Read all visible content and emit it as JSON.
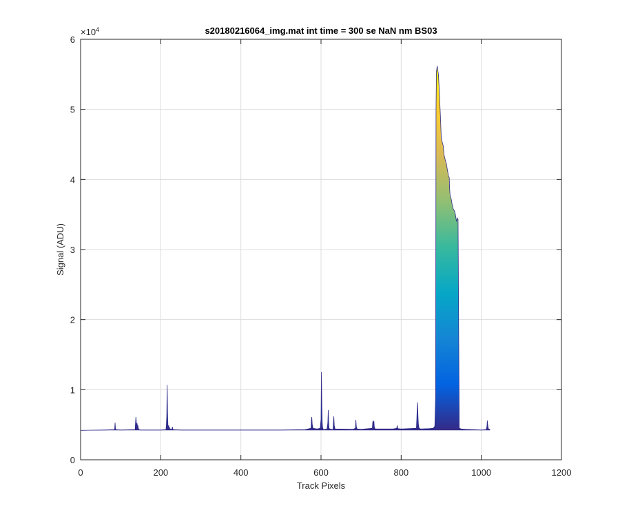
{
  "chart_data": {
    "type": "area",
    "title": "s20180216064_img.mat int time = 300 se  NaN nm BS03",
    "xlabel": "Track Pixels",
    "ylabel": "Signal (ADU)",
    "xlim": [
      0,
      1200
    ],
    "ylim": [
      0,
      60000
    ],
    "xticks": [
      0,
      200,
      400,
      600,
      800,
      1000,
      1200
    ],
    "xtick_labels": [
      "0",
      "200",
      "400",
      "600",
      "800",
      "1000",
      "1200"
    ],
    "yticks": [
      0,
      10000,
      20000,
      30000,
      40000,
      50000,
      60000
    ],
    "ytick_labels": [
      "0",
      "1",
      "2",
      "3",
      "4",
      "5",
      "6"
    ],
    "y_exponent_label": "×10",
    "y_exponent_power": "4",
    "grid": true,
    "colormap": [
      "#352a87",
      "#0363e1",
      "#1485d4",
      "#06a7c6",
      "#38b99e",
      "#92bf73",
      "#d9ba56",
      "#fcce2e",
      "#f9fb0e"
    ],
    "colormap_range": [
      0,
      56500
    ],
    "baseline": 4200,
    "series": [
      {
        "x": [
          1,
          60,
          85,
          86,
          87,
          88,
          100,
          136,
          137,
          138,
          139,
          140,
          141,
          142,
          143,
          144,
          146,
          150,
          200,
          213,
          214,
          215,
          216,
          217,
          218,
          219,
          220,
          221,
          222,
          223,
          225,
          228,
          229,
          230,
          232,
          250,
          300,
          400,
          500,
          560,
          575,
          576,
          577,
          578,
          580,
          590,
          598,
          600,
          601,
          602,
          603,
          604,
          606,
          615,
          617,
          618,
          619,
          620,
          622,
          630,
          631,
          632,
          633,
          635,
          680,
          686,
          687,
          688,
          690,
          700,
          728,
          729,
          730,
          731,
          732,
          733,
          734,
          736,
          780,
          789,
          790,
          791,
          792,
          800,
          838,
          839,
          840,
          841,
          842,
          843,
          844,
          845,
          848,
          870,
          880,
          884,
          886,
          887,
          888,
          890,
          893,
          895,
          898,
          900,
          903,
          905,
          907,
          910,
          913,
          915,
          918,
          920,
          921,
          922,
          925,
          927,
          930,
          933,
          935,
          937,
          938,
          940,
          942,
          945,
          950,
          960,
          980,
          1000,
          1012,
          1014,
          1015,
          1016,
          1017,
          1018,
          1022
        ],
        "y": [
          4200,
          4250,
          4300,
          5300,
          4500,
          4300,
          4250,
          4300,
          5200,
          6100,
          5400,
          4800,
          5200,
          4700,
          4900,
          4500,
          4300,
          4250,
          4250,
          4300,
          4900,
          6200,
          10700,
          6800,
          5000,
          4500,
          4900,
          4400,
          4600,
          4300,
          4400,
          4300,
          4700,
          4400,
          4300,
          4250,
          4250,
          4250,
          4250,
          4300,
          4500,
          5700,
          6100,
          5100,
          4500,
          4400,
          4500,
          5800,
          12500,
          8000,
          5300,
          4600,
          4300,
          4400,
          5300,
          7100,
          5400,
          4500,
          4400,
          4300,
          5400,
          6200,
          4900,
          4400,
          4350,
          4500,
          5700,
          4800,
          4400,
          4350,
          4500,
          5300,
          5600,
          5000,
          5500,
          4700,
          4500,
          4400,
          4400,
          4500,
          4900,
          4600,
          4450,
          4400,
          4500,
          5700,
          7300,
          8200,
          6200,
          5100,
          4700,
          4500,
          4400,
          4450,
          4500,
          4800,
          9000,
          50000,
          55400,
          56200,
          55000,
          52800,
          49000,
          46000,
          45200,
          44800,
          43500,
          42800,
          42200,
          41500,
          40500,
          40300,
          38600,
          37800,
          37200,
          36500,
          35800,
          35500,
          35100,
          34400,
          34000,
          34500,
          34300,
          4500,
          4400,
          4350,
          4300,
          4250,
          4300,
          4700,
          5600,
          5000,
          4600,
          4400,
          4300
        ]
      }
    ]
  }
}
